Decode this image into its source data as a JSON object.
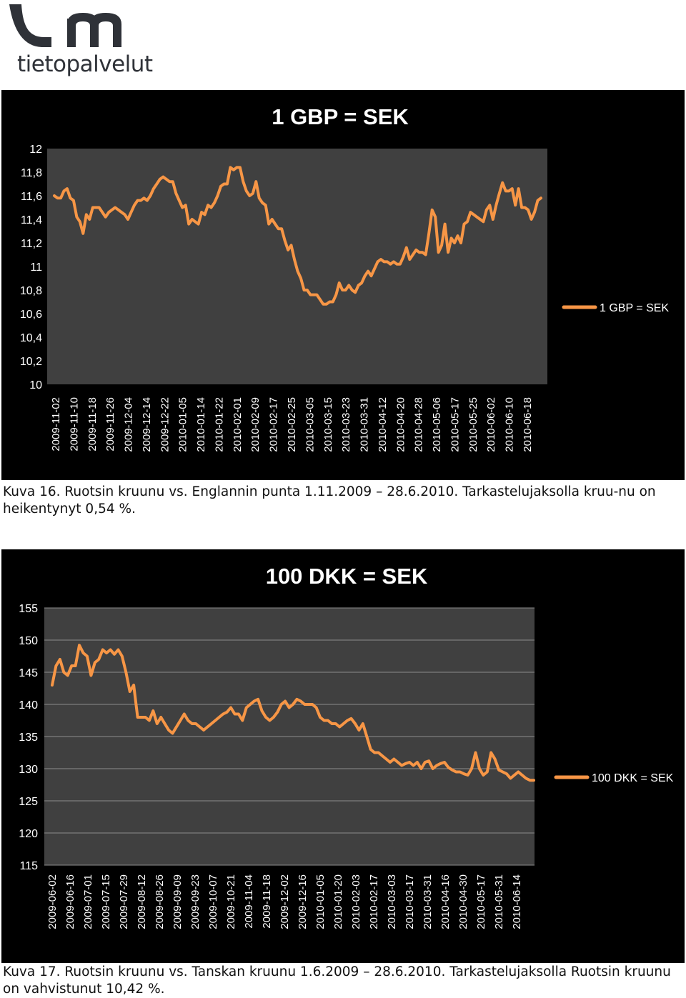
{
  "logo": {
    "text": "tietopalvelut"
  },
  "colors": {
    "series": "#f79646",
    "plot_bg": "#404040",
    "panel_bg": "#000000",
    "logo": "#2f3238"
  },
  "captions": [
    "Kuva 16. Ruotsin kruunu vs. Englannin punta 1.11.2009 – 28.6.2010. Tarkastelujaksolla kruu-nu on heikentynyt 0,54 %.",
    "Kuva 17. Ruotsin kruunu vs. Tanskan kruunu 1.6.2009 – 28.6.2010. Tarkastelujaksolla Ruotsin kruunu on vahvistunut 10,42 %."
  ],
  "chart_data": [
    {
      "type": "line",
      "title": "1 GBP = SEK",
      "xlabel": "",
      "ylabel": "",
      "ylim": [
        10,
        12
      ],
      "yticks": [
        "12",
        "11,8",
        "11,6",
        "11,4",
        "11,2",
        "11",
        "10,8",
        "10,6",
        "10,4",
        "10,2",
        "10"
      ],
      "grid": false,
      "legend": "right",
      "x_tick_labels": [
        "2009-11-02",
        "2009-11-10",
        "2009-11-18",
        "2009-11-26",
        "2009-12-04",
        "2009-12-14",
        "2009-12-22",
        "2010-01-05",
        "2010-01-14",
        "2010-01-22",
        "2010-02-01",
        "2010-02-09",
        "2010-02-17",
        "2010-02-25",
        "2010-03-05",
        "2010-03-15",
        "2010-03-23",
        "2010-03-31",
        "2010-04-12",
        "2010-04-20",
        "2010-04-28",
        "2010-05-06",
        "2010-05-17",
        "2010-05-25",
        "2010-06-02",
        "2010-06-10",
        "2010-06-18"
      ],
      "series": [
        {
          "name": "1 GBP = SEK",
          "values": [
            11.6,
            11.58,
            11.58,
            11.64,
            11.66,
            11.58,
            11.56,
            11.42,
            11.38,
            11.28,
            11.44,
            11.4,
            11.5,
            11.5,
            11.5,
            11.46,
            11.42,
            11.46,
            11.48,
            11.5,
            11.48,
            11.46,
            11.44,
            11.4,
            11.46,
            11.52,
            11.56,
            11.56,
            11.58,
            11.56,
            11.6,
            11.66,
            11.7,
            11.74,
            11.76,
            11.74,
            11.72,
            11.72,
            11.62,
            11.56,
            11.5,
            11.52,
            11.36,
            11.4,
            11.38,
            11.36,
            11.46,
            11.44,
            11.52,
            11.5,
            11.54,
            11.6,
            11.68,
            11.7,
            11.7,
            11.84,
            11.82,
            11.84,
            11.84,
            11.72,
            11.64,
            11.6,
            11.62,
            11.72,
            11.58,
            11.54,
            11.52,
            11.36,
            11.4,
            11.36,
            11.32,
            11.32,
            11.22,
            11.14,
            11.18,
            11.06,
            10.96,
            10.9,
            10.8,
            10.8,
            10.76,
            10.76,
            10.76,
            10.72,
            10.68,
            10.68,
            10.7,
            10.7,
            10.76,
            10.86,
            10.8,
            10.8,
            10.84,
            10.8,
            10.78,
            10.84,
            10.86,
            10.92,
            10.96,
            10.92,
            10.98,
            11.04,
            11.06,
            11.04,
            11.04,
            11.02,
            11.04,
            11.02,
            11.02,
            11.08,
            11.16,
            11.06,
            11.1,
            11.14,
            11.12,
            11.12,
            11.1,
            11.28,
            11.48,
            11.42,
            11.12,
            11.18,
            11.36,
            11.12,
            11.24,
            11.2,
            11.26,
            11.2,
            11.36,
            11.38,
            11.46,
            11.44,
            11.42,
            11.4,
            11.38,
            11.48,
            11.52,
            11.4,
            11.52,
            11.62,
            11.71,
            11.64,
            11.64,
            11.66,
            11.52,
            11.66,
            11.5,
            11.5,
            11.48,
            11.4,
            11.46,
            11.56,
            11.58
          ]
        }
      ]
    },
    {
      "type": "line",
      "title": "100 DKK = SEK",
      "xlabel": "",
      "ylabel": "",
      "ylim": [
        115,
        155
      ],
      "yticks": [
        "155",
        "150",
        "145",
        "140",
        "135",
        "130",
        "125",
        "120",
        "115"
      ],
      "grid": true,
      "legend": "right",
      "x_tick_labels": [
        "2009-06-02",
        "2009-06-16",
        "2009-07-01",
        "2009-07-15",
        "2009-07-29",
        "2009-08-12",
        "2009-08-26",
        "2009-09-09",
        "2009-09-23",
        "2009-10-07",
        "2009-10-21",
        "2009-11-04",
        "2009-11-18",
        "2009-12-02",
        "2009-12-16",
        "2010-01-05",
        "2010-01-20",
        "2010-02-03",
        "2010-02-17",
        "2010-03-03",
        "2010-03-17",
        "2010-03-31",
        "2010-04-16",
        "2010-04-30",
        "2010-05-17",
        "2010-05-31",
        "2010-06-14"
      ],
      "series": [
        {
          "name": "100 DKK = SEK",
          "values": [
            143,
            146,
            147,
            145,
            144.5,
            146,
            146,
            149.2,
            148,
            147.5,
            144.5,
            146.5,
            147,
            148.5,
            148,
            148.5,
            147.8,
            148.5,
            147.5,
            145,
            142,
            143,
            138,
            138,
            138,
            137.5,
            139,
            137,
            138,
            137,
            136,
            135.5,
            136.5,
            137.5,
            138.5,
            137.5,
            137,
            137,
            136.5,
            136,
            136.5,
            137,
            137.5,
            138,
            138.5,
            138.8,
            139.5,
            138.5,
            138.5,
            137.5,
            139.5,
            140,
            140.5,
            140.8,
            139,
            138,
            137.5,
            138,
            138.8,
            140,
            140.5,
            139.5,
            140,
            140.8,
            140.5,
            140,
            140,
            140,
            139.5,
            138,
            137.5,
            137.5,
            137,
            137,
            136.5,
            137,
            137.5,
            137.8,
            137,
            136,
            137,
            135,
            133,
            132.5,
            132.5,
            132,
            131.5,
            131,
            131.5,
            131,
            130.5,
            130.8,
            131,
            130.5,
            131,
            130,
            131,
            131.2,
            130,
            130.5,
            130.8,
            131,
            130.2,
            129.8,
            129.5,
            129.5,
            129.2,
            129,
            130,
            132.5,
            130,
            129,
            129.5,
            132.5,
            131.5,
            129.8,
            129.5,
            129.2,
            128.5,
            129,
            129.5,
            129,
            128.5,
            128.2,
            128.2
          ]
        }
      ]
    }
  ]
}
